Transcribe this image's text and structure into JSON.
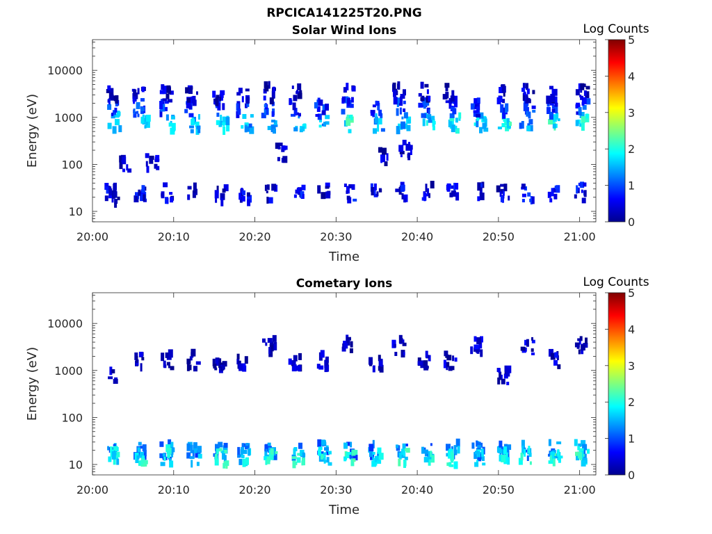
{
  "figure": {
    "title": "RPCICA141225T20.PNG"
  },
  "chart_data": [
    {
      "type": "heatmap",
      "title": "Solar Wind Ions",
      "xlabel": "Time",
      "ylabel": "Energy (eV)",
      "x_ticks": [
        "20:00",
        "20:10",
        "20:20",
        "20:30",
        "20:40",
        "20:50",
        "21:00"
      ],
      "xlim": [
        "20:00",
        "21:02"
      ],
      "y_scale": "log",
      "y_ticks": [
        10,
        100,
        1000,
        10000
      ],
      "y_tick_labels": [
        "10",
        "100",
        "1000",
        "10000"
      ],
      "ylim": [
        6,
        45000
      ],
      "colorbar": {
        "label": "Log Counts",
        "range": [
          0,
          5
        ],
        "ticks": [
          "0",
          "1",
          "2",
          "3",
          "4",
          "5"
        ],
        "colormap": "jet"
      },
      "sweep_times_min": [
        2.2,
        5.8,
        9.2,
        12.5,
        15.8,
        18.7,
        22.0,
        25.3,
        28.5,
        31.8,
        34.9,
        38.1,
        41.2,
        44.4,
        47.5,
        50.6,
        53.7,
        56.8,
        60.2
      ],
      "samples": [
        {
          "t": 2.2,
          "e": 25,
          "v": 0.5
        },
        {
          "t": 2.6,
          "e": 20,
          "v": 0.4
        },
        {
          "t": 2.8,
          "e": 800,
          "v": 1.7
        },
        {
          "t": 2.6,
          "e": 1600,
          "v": 0.9
        },
        {
          "t": 2.3,
          "e": 3000,
          "v": 0.3
        },
        {
          "t": 5.8,
          "e": 25,
          "v": 0.6
        },
        {
          "t": 6.2,
          "e": 750,
          "v": 1.8
        },
        {
          "t": 5.7,
          "e": 1600,
          "v": 0.9
        },
        {
          "t": 5.7,
          "e": 3200,
          "v": 0.4
        },
        {
          "t": 3.9,
          "e": 100,
          "v": 0.4
        },
        {
          "t": 9.2,
          "e": 25,
          "v": 0.5
        },
        {
          "t": 9.5,
          "e": 750,
          "v": 1.6
        },
        {
          "t": 8.9,
          "e": 1600,
          "v": 0.8
        },
        {
          "t": 9.1,
          "e": 3000,
          "v": 0.4
        },
        {
          "t": 7.4,
          "e": 105,
          "v": 0.4
        },
        {
          "t": 12.5,
          "e": 25,
          "v": 0.5
        },
        {
          "t": 12.8,
          "e": 750,
          "v": 1.7
        },
        {
          "t": 12.2,
          "e": 1600,
          "v": 0.7
        },
        {
          "t": 12.3,
          "e": 3000,
          "v": 0.4
        },
        {
          "t": 15.8,
          "e": 22,
          "v": 0.5
        },
        {
          "t": 16.0,
          "e": 750,
          "v": 1.8
        },
        {
          "t": 15.5,
          "e": 1600,
          "v": 0.8
        },
        {
          "t": 15.5,
          "e": 3000,
          "v": 0.4
        },
        {
          "t": 18.7,
          "e": 22,
          "v": 0.5
        },
        {
          "t": 19.0,
          "e": 750,
          "v": 1.5
        },
        {
          "t": 18.5,
          "e": 1600,
          "v": 0.9
        },
        {
          "t": 18.5,
          "e": 3000,
          "v": 0.4
        },
        {
          "t": 22.0,
          "e": 25,
          "v": 0.5
        },
        {
          "t": 22.3,
          "e": 750,
          "v": 1.7
        },
        {
          "t": 21.6,
          "e": 1600,
          "v": 0.8
        },
        {
          "t": 21.8,
          "e": 3300,
          "v": 0.4
        },
        {
          "t": 23.2,
          "e": 180,
          "v": 0.4
        },
        {
          "t": 25.3,
          "e": 25,
          "v": 0.6
        },
        {
          "t": 25.5,
          "e": 750,
          "v": 1.5
        },
        {
          "t": 24.9,
          "e": 1600,
          "v": 0.8
        },
        {
          "t": 25.0,
          "e": 3000,
          "v": 0.3
        },
        {
          "t": 28.5,
          "e": 25,
          "v": 0.5
        },
        {
          "t": 28.6,
          "e": 780,
          "v": 1.6
        },
        {
          "t": 28.2,
          "e": 1500,
          "v": 0.8
        },
        {
          "t": 31.8,
          "e": 25,
          "v": 0.6
        },
        {
          "t": 31.8,
          "e": 750,
          "v": 2.0
        },
        {
          "t": 31.5,
          "e": 1800,
          "v": 0.9
        },
        {
          "t": 31.5,
          "e": 3300,
          "v": 0.4
        },
        {
          "t": 34.9,
          "e": 25,
          "v": 0.5
        },
        {
          "t": 35.1,
          "e": 750,
          "v": 1.5
        },
        {
          "t": 34.9,
          "e": 1600,
          "v": 0.9
        },
        {
          "t": 35.8,
          "e": 150,
          "v": 0.4
        },
        {
          "t": 38.1,
          "e": 25,
          "v": 0.5
        },
        {
          "t": 38.3,
          "e": 750,
          "v": 1.6
        },
        {
          "t": 37.8,
          "e": 1600,
          "v": 0.9
        },
        {
          "t": 37.8,
          "e": 3300,
          "v": 0.4
        },
        {
          "t": 38.6,
          "e": 200,
          "v": 0.4
        },
        {
          "t": 41.2,
          "e": 25,
          "v": 0.5
        },
        {
          "t": 41.4,
          "e": 750,
          "v": 1.7
        },
        {
          "t": 40.8,
          "e": 1600,
          "v": 0.8
        },
        {
          "t": 40.9,
          "e": 3300,
          "v": 0.4
        },
        {
          "t": 44.4,
          "e": 25,
          "v": 0.6
        },
        {
          "t": 44.6,
          "e": 750,
          "v": 1.8
        },
        {
          "t": 44.1,
          "e": 1600,
          "v": 0.8
        },
        {
          "t": 44.1,
          "e": 3300,
          "v": 0.4
        },
        {
          "t": 47.5,
          "e": 25,
          "v": 0.6
        },
        {
          "t": 47.8,
          "e": 750,
          "v": 1.6
        },
        {
          "t": 47.3,
          "e": 1600,
          "v": 0.8
        },
        {
          "t": 50.6,
          "e": 25,
          "v": 0.5
        },
        {
          "t": 50.8,
          "e": 750,
          "v": 2.0
        },
        {
          "t": 50.6,
          "e": 1600,
          "v": 0.8
        },
        {
          "t": 50.6,
          "e": 3300,
          "v": 0.4
        },
        {
          "t": 53.7,
          "e": 25,
          "v": 0.7
        },
        {
          "t": 53.3,
          "e": 750,
          "v": 1.4
        },
        {
          "t": 53.8,
          "e": 1600,
          "v": 0.9
        },
        {
          "t": 53.7,
          "e": 3300,
          "v": 0.4
        },
        {
          "t": 56.8,
          "e": 25,
          "v": 0.6
        },
        {
          "t": 57.0,
          "e": 750,
          "v": 2.0
        },
        {
          "t": 56.8,
          "e": 1600,
          "v": 0.9
        },
        {
          "t": 56.8,
          "e": 3300,
          "v": 0.4
        },
        {
          "t": 60.2,
          "e": 25,
          "v": 0.6
        },
        {
          "t": 60.4,
          "e": 750,
          "v": 1.9
        },
        {
          "t": 60.4,
          "e": 1600,
          "v": 0.9
        },
        {
          "t": 60.4,
          "e": 3300,
          "v": 0.4
        }
      ]
    },
    {
      "type": "heatmap",
      "title": "Cometary Ions",
      "xlabel": "Time",
      "ylabel": "Energy (eV)",
      "x_ticks": [
        "20:00",
        "20:10",
        "20:20",
        "20:30",
        "20:40",
        "20:50",
        "21:00"
      ],
      "xlim": [
        "20:00",
        "21:02"
      ],
      "y_scale": "log",
      "y_ticks": [
        10,
        100,
        1000,
        10000
      ],
      "y_tick_labels": [
        "10",
        "100",
        "1000",
        "10000"
      ],
      "ylim": [
        6,
        45000
      ],
      "colorbar": {
        "label": "Log Counts",
        "range": [
          0,
          5
        ],
        "ticks": [
          "0",
          "1",
          "2",
          "3",
          "4",
          "5"
        ],
        "colormap": "jet"
      },
      "sweep_times_min": [
        2.2,
        5.8,
        9.2,
        12.5,
        15.8,
        18.7,
        22.0,
        25.3,
        28.5,
        31.8,
        34.9,
        38.1,
        41.2,
        44.4,
        47.5,
        50.6,
        53.7,
        56.8,
        60.2
      ],
      "samples": [
        {
          "t": 2.2,
          "e": 20,
          "v": 1.2
        },
        {
          "t": 2.8,
          "e": 15,
          "v": 1.8
        },
        {
          "t": 2.8,
          "e": 750,
          "v": 0.4
        },
        {
          "t": 5.8,
          "e": 20,
          "v": 1.3
        },
        {
          "t": 6.0,
          "e": 15,
          "v": 2.0
        },
        {
          "t": 6.0,
          "e": 1600,
          "v": 0.3
        },
        {
          "t": 9.2,
          "e": 20,
          "v": 1.3
        },
        {
          "t": 9.3,
          "e": 15,
          "v": 1.9
        },
        {
          "t": 9.2,
          "e": 1600,
          "v": 0.3
        },
        {
          "t": 12.5,
          "e": 20,
          "v": 1.3
        },
        {
          "t": 12.6,
          "e": 15,
          "v": 1.8
        },
        {
          "t": 12.4,
          "e": 1600,
          "v": 0.3
        },
        {
          "t": 15.8,
          "e": 20,
          "v": 1.4
        },
        {
          "t": 15.9,
          "e": 14,
          "v": 2.1
        },
        {
          "t": 15.6,
          "e": 1600,
          "v": 0.3
        },
        {
          "t": 18.7,
          "e": 20,
          "v": 1.2
        },
        {
          "t": 18.9,
          "e": 15,
          "v": 1.8
        },
        {
          "t": 18.5,
          "e": 1600,
          "v": 0.3
        },
        {
          "t": 22.0,
          "e": 20,
          "v": 1.3
        },
        {
          "t": 22.0,
          "e": 15,
          "v": 2.0
        },
        {
          "t": 21.8,
          "e": 3300,
          "v": 0.4
        },
        {
          "t": 25.3,
          "e": 20,
          "v": 1.4
        },
        {
          "t": 25.5,
          "e": 15,
          "v": 1.9
        },
        {
          "t": 25.0,
          "e": 1600,
          "v": 0.3
        },
        {
          "t": 28.5,
          "e": 20,
          "v": 1.3
        },
        {
          "t": 28.6,
          "e": 15,
          "v": 1.9
        },
        {
          "t": 28.3,
          "e": 1600,
          "v": 0.3
        },
        {
          "t": 31.8,
          "e": 20,
          "v": 1.3
        },
        {
          "t": 31.8,
          "e": 15,
          "v": 2.0
        },
        {
          "t": 31.5,
          "e": 3300,
          "v": 0.4
        },
        {
          "t": 34.9,
          "e": 20,
          "v": 1.3
        },
        {
          "t": 35.0,
          "e": 15,
          "v": 1.9
        },
        {
          "t": 34.9,
          "e": 1600,
          "v": 0.3
        },
        {
          "t": 38.1,
          "e": 20,
          "v": 1.3
        },
        {
          "t": 38.3,
          "e": 15,
          "v": 2.0
        },
        {
          "t": 37.8,
          "e": 3300,
          "v": 0.4
        },
        {
          "t": 41.2,
          "e": 20,
          "v": 1.3
        },
        {
          "t": 41.2,
          "e": 15,
          "v": 1.8
        },
        {
          "t": 40.9,
          "e": 1600,
          "v": 0.3
        },
        {
          "t": 44.4,
          "e": 20,
          "v": 1.5
        },
        {
          "t": 44.4,
          "e": 14,
          "v": 2.1
        },
        {
          "t": 44.1,
          "e": 1600,
          "v": 0.3
        },
        {
          "t": 47.5,
          "e": 20,
          "v": 1.4
        },
        {
          "t": 47.5,
          "e": 14,
          "v": 2.0
        },
        {
          "t": 47.3,
          "e": 3300,
          "v": 0.4
        },
        {
          "t": 50.6,
          "e": 20,
          "v": 1.3
        },
        {
          "t": 50.6,
          "e": 15,
          "v": 2.0
        },
        {
          "t": 50.6,
          "e": 750,
          "v": 0.3
        },
        {
          "t": 53.7,
          "e": 20,
          "v": 1.3
        },
        {
          "t": 53.4,
          "e": 15,
          "v": 1.9
        },
        {
          "t": 53.7,
          "e": 3300,
          "v": 0.4
        },
        {
          "t": 56.8,
          "e": 20,
          "v": 1.4
        },
        {
          "t": 57.0,
          "e": 15,
          "v": 2.1
        },
        {
          "t": 56.8,
          "e": 1600,
          "v": 0.4
        },
        {
          "t": 60.2,
          "e": 20,
          "v": 1.5
        },
        {
          "t": 60.4,
          "e": 15,
          "v": 2.0
        },
        {
          "t": 60.4,
          "e": 3300,
          "v": 0.4
        }
      ]
    }
  ]
}
